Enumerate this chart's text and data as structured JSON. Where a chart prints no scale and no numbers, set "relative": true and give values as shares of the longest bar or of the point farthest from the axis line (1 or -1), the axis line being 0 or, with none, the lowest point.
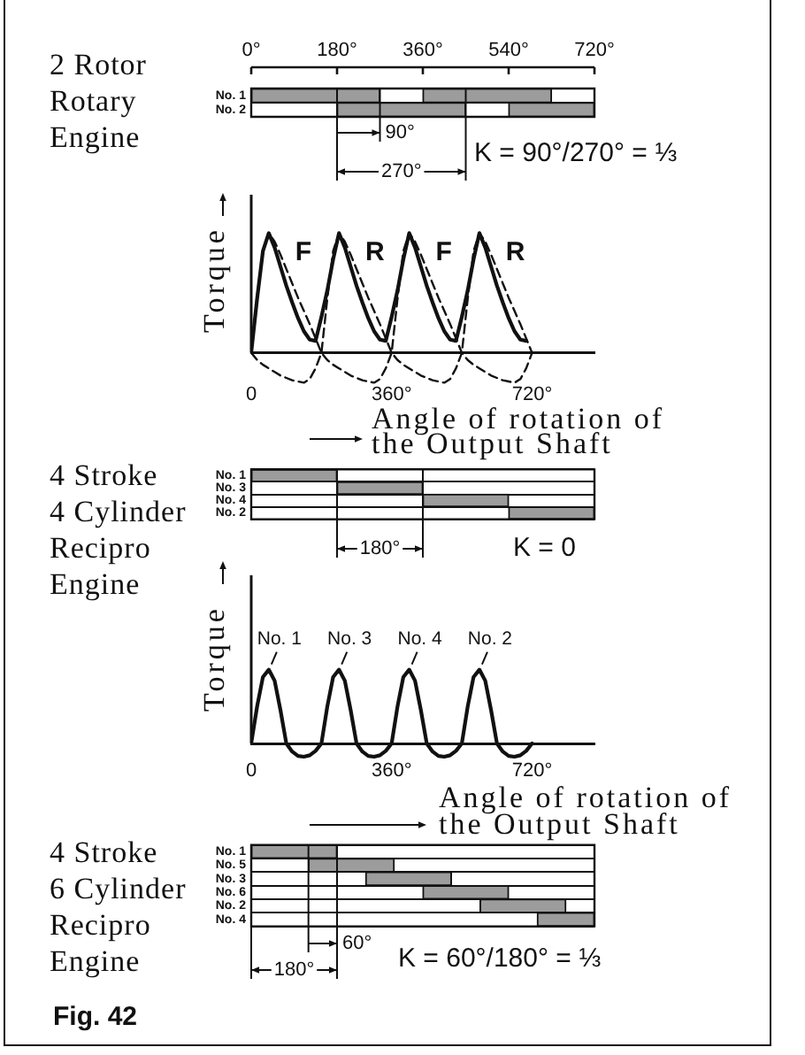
{
  "chart_data": [
    {
      "type": "bar",
      "orientation": "horizontal",
      "title": "2 Rotor Rotary Engine",
      "categories": [
        "No. 1",
        "No. 2"
      ],
      "series": [
        {
          "color": "#9c9c9c",
          "base": [
            0,
            180
          ],
          "values": [
            270,
            270
          ]
        },
        {
          "color": "#9c9c9c",
          "base": [
            360,
            540
          ],
          "values": [
            270,
            180
          ]
        }
      ],
      "xlim": [
        0,
        720
      ],
      "xticks": [
        {
          "value": 0,
          "label": "0°"
        },
        {
          "value": 180,
          "label": "180°"
        },
        {
          "value": 360,
          "label": "360°"
        },
        {
          "value": 540,
          "label": "540°"
        },
        {
          "value": 720,
          "label": "720°"
        }
      ],
      "grid": "y",
      "ref_lines": [
        {
          "axis": "x",
          "value": 180
        },
        {
          "axis": "x",
          "value": 270
        },
        {
          "axis": "x",
          "value": 450
        }
      ],
      "annotations": [
        "90°",
        "270°",
        "K = 90°/270° = ⅓"
      ]
    },
    {
      "type": "line",
      "relative": true,
      "ylabel": "Torque",
      "xlabel": "Angle of rotation of the Output Shaft",
      "xlim": [
        0,
        880
      ],
      "xticks": [
        0,
        {
          "value": 360,
          "label": "360°"
        },
        {
          "value": 720,
          "label": "720°"
        }
      ],
      "series": [
        {
          "color": "#111111",
          "x": [
            0,
            15,
            30,
            45,
            60,
            75,
            90,
            105,
            120,
            135,
            150,
            165,
            180,
            195,
            210,
            225,
            240,
            255,
            270,
            285,
            300,
            315,
            330,
            345,
            360,
            375,
            390,
            405,
            420,
            435,
            450,
            465,
            480,
            495,
            510,
            525,
            540,
            555,
            570,
            585,
            600,
            615,
            630,
            645,
            660,
            675,
            690,
            705
          ],
          "values": [
            0,
            0.45,
            0.85,
            1,
            0.88,
            0.72,
            0.56,
            0.42,
            0.29,
            0.18,
            0.11,
            0.1,
            0.3,
            0.52,
            0.78,
            1,
            0.88,
            0.72,
            0.56,
            0.42,
            0.29,
            0.18,
            0.11,
            0.1,
            0.3,
            0.52,
            0.78,
            1,
            0.88,
            0.72,
            0.56,
            0.42,
            0.29,
            0.18,
            0.11,
            0.1,
            0.3,
            0.52,
            0.78,
            1,
            0.88,
            0.72,
            0.56,
            0.42,
            0.29,
            0.18,
            0.11,
            0.1
          ]
        },
        {
          "name": "F",
          "color": "#111111",
          "line_style": "dashed",
          "x": [
            0,
            15,
            30,
            45,
            60,
            75,
            90,
            105,
            120,
            135,
            150,
            165,
            180,
            195,
            210,
            225,
            240,
            255,
            270,
            285,
            300,
            315,
            330,
            345,
            360,
            375,
            390,
            405,
            420,
            435,
            450,
            465,
            480,
            495,
            510,
            525,
            540,
            555,
            570,
            585,
            600,
            615,
            630,
            645,
            660,
            675,
            690,
            705,
            720
          ],
          "values": [
            0,
            0.45,
            0.85,
            1,
            0.93,
            0.82,
            0.7,
            0.58,
            0.46,
            0.35,
            0.24,
            0.12,
            0,
            -0.06,
            -0.1,
            -0.13,
            -0.16,
            -0.19,
            -0.21,
            -0.23,
            -0.24,
            -0.25,
            -0.22,
            -0.13,
            0,
            0.45,
            0.85,
            1,
            0.93,
            0.82,
            0.7,
            0.58,
            0.46,
            0.35,
            0.24,
            0.12,
            0,
            -0.06,
            -0.1,
            -0.13,
            -0.16,
            -0.19,
            -0.21,
            -0.23,
            -0.24,
            -0.25,
            -0.22,
            -0.13,
            0
          ]
        },
        {
          "name": "R",
          "color": "#111111",
          "line_style": "dashed",
          "x": [
            0,
            15,
            30,
            45,
            60,
            75,
            90,
            105,
            120,
            135,
            150,
            165,
            180,
            195,
            210,
            225,
            240,
            255,
            270,
            285,
            300,
            315,
            330,
            345,
            360,
            375,
            390,
            405,
            420,
            435,
            450,
            465,
            480,
            495,
            510,
            525,
            540,
            555,
            570,
            585,
            600,
            615,
            630,
            645,
            660,
            675,
            690,
            705,
            720
          ],
          "values": [
            0,
            -0.06,
            -0.1,
            -0.13,
            -0.16,
            -0.19,
            -0.21,
            -0.23,
            -0.24,
            -0.25,
            -0.22,
            -0.13,
            0,
            0.45,
            0.85,
            1,
            0.93,
            0.82,
            0.7,
            0.58,
            0.46,
            0.35,
            0.24,
            0.12,
            0,
            -0.06,
            -0.1,
            -0.13,
            -0.16,
            -0.19,
            -0.21,
            -0.23,
            -0.24,
            -0.25,
            -0.22,
            -0.13,
            0,
            0.45,
            0.85,
            1,
            0.93,
            0.82,
            0.7,
            0.58,
            0.46,
            0.35,
            0.24,
            0.12,
            0
          ]
        }
      ]
    },
    {
      "type": "bar",
      "orientation": "horizontal",
      "title": "4 Stroke 4 Cylinder Recipro Engine",
      "categories": [
        "No. 1",
        "No. 3",
        "No. 4",
        "No. 2"
      ],
      "series": [
        {
          "color": "#9c9c9c",
          "base": [
            0,
            180,
            360,
            540
          ],
          "values": [
            180,
            180,
            180,
            180
          ]
        }
      ],
      "xlim": [
        0,
        720
      ],
      "tick_labels": "y",
      "grid": "y",
      "ref_lines": [
        {
          "axis": "x",
          "value": 180
        },
        {
          "axis": "x",
          "value": 360
        }
      ],
      "annotations": [
        "180°",
        "K = 0"
      ]
    },
    {
      "type": "line",
      "relative": true,
      "ylabel": "Torque",
      "xlabel": "Angle of rotation of the Output Shaft",
      "xlim": [
        0,
        880
      ],
      "xticks": [
        0,
        {
          "value": 360,
          "label": "360°"
        },
        {
          "value": 720,
          "label": "720°"
        }
      ],
      "series": [
        {
          "color": "#111111",
          "x": [
            0,
            15,
            30,
            45,
            60,
            75,
            90,
            105,
            120,
            135,
            150,
            165,
            180,
            195,
            210,
            225,
            240,
            255,
            270,
            285,
            300,
            315,
            330,
            345,
            360,
            375,
            390,
            405,
            420,
            435,
            450,
            465,
            480,
            495,
            510,
            525,
            540,
            555,
            570,
            585,
            600,
            615,
            630,
            645,
            660,
            675,
            690,
            705,
            720
          ],
          "values": [
            0,
            0.5,
            0.9,
            1,
            0.85,
            0.45,
            0,
            -0.11,
            -0.17,
            -0.18,
            -0.16,
            -0.1,
            0,
            0.5,
            0.9,
            1,
            0.85,
            0.45,
            0,
            -0.11,
            -0.17,
            -0.18,
            -0.16,
            -0.1,
            0,
            0.5,
            0.9,
            1,
            0.85,
            0.45,
            0,
            -0.11,
            -0.17,
            -0.18,
            -0.16,
            -0.1,
            0,
            0.5,
            0.9,
            1,
            0.85,
            0.45,
            0,
            -0.11,
            -0.17,
            -0.18,
            -0.16,
            -0.1,
            0
          ]
        }
      ],
      "annotations": [
        {
          "text": "No. 1",
          "x": 45,
          "y": 1
        },
        {
          "text": "No. 3",
          "x": 225,
          "y": 1
        },
        {
          "text": "No. 4",
          "x": 405,
          "y": 1
        },
        {
          "text": "No. 2",
          "x": 585,
          "y": 1
        }
      ]
    },
    {
      "type": "bar",
      "orientation": "horizontal",
      "title": "4 Stroke 6 Cylinder Recipro Engine",
      "categories": [
        "No. 1",
        "No. 5",
        "No. 3",
        "No. 6",
        "No. 2",
        "No. 4"
      ],
      "series": [
        {
          "color": "#9c9c9c",
          "base": [
            0,
            120,
            240,
            360,
            480,
            600
          ],
          "values": [
            180,
            180,
            180,
            180,
            180,
            120
          ]
        }
      ],
      "xlim": [
        0,
        720
      ],
      "tick_labels": "y",
      "grid": "y",
      "ref_lines": [
        {
          "axis": "x",
          "value": 120
        },
        {
          "axis": "x",
          "value": 180
        }
      ],
      "annotations": [
        "60°",
        "180°",
        "K = 60°/180° = ⅓",
        "Fig. 42"
      ]
    }
  ]
}
